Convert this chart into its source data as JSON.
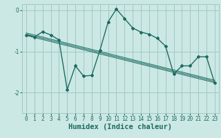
{
  "xlabel": "Humidex (Indice chaleur)",
  "background_color": "#cce8e4",
  "grid_color": "#a0c8c4",
  "line_color": "#1a6b60",
  "x_values": [
    0,
    1,
    2,
    3,
    4,
    5,
    6,
    7,
    8,
    9,
    10,
    11,
    12,
    13,
    14,
    15,
    16,
    17,
    18,
    19,
    20,
    21,
    22,
    23
  ],
  "y_main": [
    -0.6,
    -0.65,
    -0.52,
    -0.6,
    -0.72,
    -1.93,
    -1.35,
    -1.6,
    -1.58,
    -0.97,
    -0.28,
    0.03,
    -0.2,
    -0.43,
    -0.53,
    -0.58,
    -0.68,
    -0.87,
    -1.55,
    -1.35,
    -1.35,
    -1.13,
    -1.13,
    -1.77
  ],
  "trend_lines": [
    [
      -0.55,
      -0.6,
      -0.65,
      -0.7,
      -0.75,
      -0.8,
      -0.85,
      -0.9,
      -0.95,
      -1.0,
      -1.05,
      -1.1,
      -1.15,
      -1.2,
      -1.25,
      -1.3,
      -1.35,
      -1.4,
      -1.45,
      -1.5,
      -1.55,
      -1.6,
      -1.65,
      -1.7
    ],
    [
      -0.58,
      -0.63,
      -0.68,
      -0.73,
      -0.78,
      -0.83,
      -0.88,
      -0.93,
      -0.98,
      -1.03,
      -1.08,
      -1.13,
      -1.18,
      -1.23,
      -1.28,
      -1.33,
      -1.38,
      -1.43,
      -1.48,
      -1.53,
      -1.58,
      -1.63,
      -1.68,
      -1.73
    ],
    [
      -0.61,
      -0.66,
      -0.71,
      -0.76,
      -0.81,
      -0.86,
      -0.91,
      -0.96,
      -1.01,
      -1.06,
      -1.11,
      -1.16,
      -1.21,
      -1.26,
      -1.31,
      -1.36,
      -1.41,
      -1.46,
      -1.51,
      -1.56,
      -1.61,
      -1.66,
      -1.71,
      -1.76
    ]
  ],
  "ylim": [
    -2.5,
    0.15
  ],
  "xlim": [
    -0.5,
    23.5
  ],
  "yticks": [
    0,
    -1,
    -2
  ],
  "xticks": [
    0,
    1,
    2,
    3,
    4,
    5,
    6,
    7,
    8,
    9,
    10,
    11,
    12,
    13,
    14,
    15,
    16,
    17,
    18,
    19,
    20,
    21,
    22,
    23
  ],
  "tick_fontsize": 5.5,
  "label_fontsize": 7.5
}
